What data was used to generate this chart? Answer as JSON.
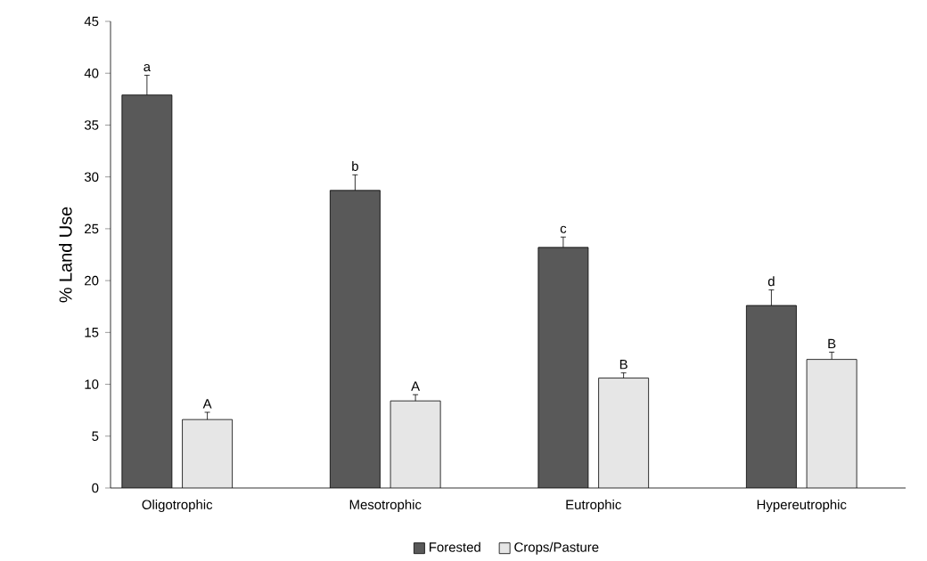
{
  "chart_data": {
    "type": "bar",
    "ylabel": "% Land Use",
    "categories": [
      "Oligotrophic",
      "Mesotrophic",
      "Eutrophic",
      "Hypereutrophic"
    ],
    "series": [
      {
        "name": "Forested",
        "color": "#595959",
        "values": [
          37.9,
          28.7,
          23.2,
          17.6
        ],
        "errors": [
          1.9,
          1.5,
          1.0,
          1.5
        ],
        "value_labels": [
          "a",
          "b",
          "c",
          "d"
        ]
      },
      {
        "name": "Crops/Pasture",
        "color": "#e6e6e6",
        "values": [
          6.6,
          8.4,
          10.6,
          12.4
        ],
        "errors": [
          0.7,
          0.6,
          0.5,
          0.7
        ],
        "value_labels": [
          "A",
          "A",
          "B",
          "B"
        ]
      }
    ],
    "ylim": [
      0,
      45
    ],
    "yticks": [
      0,
      5,
      10,
      15,
      20,
      25,
      30,
      35,
      40,
      45
    ],
    "grid": false,
    "legend": "bottom"
  }
}
